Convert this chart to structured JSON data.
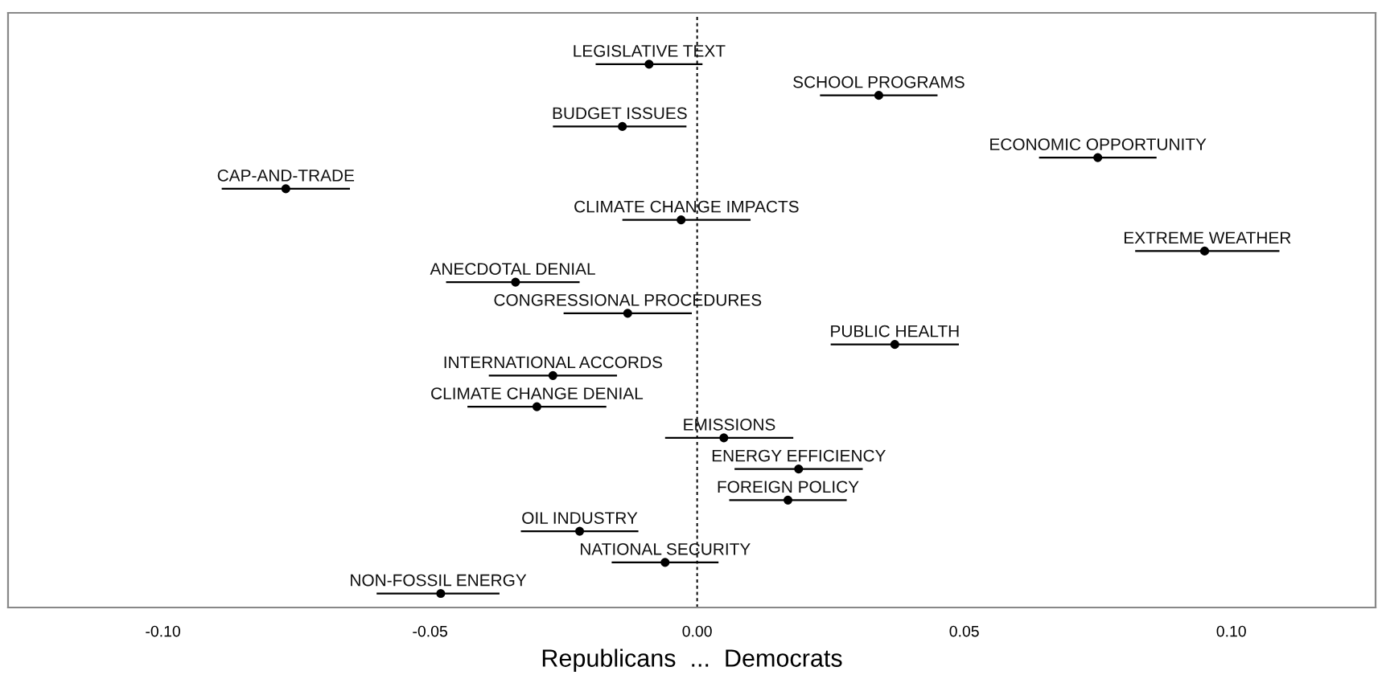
{
  "chart_data": {
    "type": "scatter",
    "orientation": "horizontal",
    "xlabel": "Republicans  ...  Democrats",
    "categories": [
      "LEGISLATIVE TEXT",
      "SCHOOL PROGRAMS",
      "BUDGET ISSUES",
      "ECONOMIC OPPORTUNITY",
      "CAP-AND-TRADE",
      "CLIMATE CHANGE IMPACTS",
      "EXTREME WEATHER",
      "ANECDOTAL DENIAL",
      "CONGRESSIONAL PROCEDURES",
      "PUBLIC HEALTH",
      "INTERNATIONAL ACCORDS",
      "CLIMATE CHANGE DENIAL",
      "EMISSIONS",
      "ENERGY EFFICIENCY",
      "FOREIGN POLICY",
      "OIL INDUSTRY",
      "NATIONAL SECURITY",
      "NON-FOSSIL ENERGY"
    ],
    "series": [
      {
        "color": "#000000",
        "values": [
          -0.009,
          0.034,
          -0.014,
          0.075,
          -0.077,
          -0.003,
          0.095,
          -0.034,
          -0.013,
          0.037,
          -0.027,
          -0.03,
          0.005,
          0.019,
          0.017,
          -0.022,
          -0.006,
          -0.048
        ],
        "errors": [
          [
            -0.019,
            0.001
          ],
          [
            0.023,
            0.045
          ],
          [
            -0.027,
            -0.002
          ],
          [
            0.064,
            0.086
          ],
          [
            -0.089,
            -0.065
          ],
          [
            -0.014,
            0.01
          ],
          [
            0.082,
            0.109
          ],
          [
            -0.047,
            -0.022
          ],
          [
            -0.025,
            -0.001
          ],
          [
            0.025,
            0.049
          ],
          [
            -0.039,
            -0.015
          ],
          [
            -0.043,
            -0.017
          ],
          [
            -0.006,
            0.018
          ],
          [
            0.007,
            0.031
          ],
          [
            0.006,
            0.028
          ],
          [
            -0.033,
            -0.011
          ],
          [
            -0.016,
            0.004
          ],
          [
            -0.06,
            -0.037
          ]
        ]
      }
    ],
    "xlim": [
      -0.129,
      0.127
    ],
    "xticks": [
      {
        "value": -0.1,
        "label": "-0.10"
      },
      {
        "value": -0.05,
        "label": "-0.05"
      },
      {
        "value": 0,
        "label": "0.00"
      },
      {
        "value": 0.05,
        "label": "0.05"
      },
      {
        "value": 0.1,
        "label": "0.10"
      }
    ],
    "ref_lines": [
      {
        "axis": "x",
        "value": 0,
        "line_style": "dashed",
        "color": "#000000"
      }
    ],
    "marker": "circle",
    "grid": false,
    "legend": false
  }
}
